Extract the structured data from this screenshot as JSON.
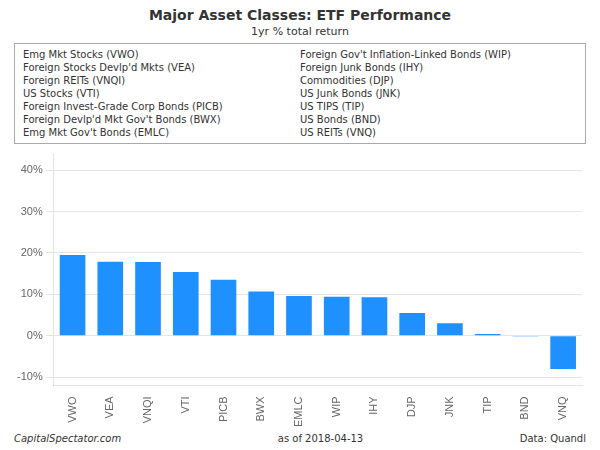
{
  "chart_data": {
    "type": "bar",
    "title": "Major Asset Classes: ETF Performance",
    "subtitle": "1yr % total return",
    "categories": [
      "VWO",
      "VEA",
      "VNQI",
      "VTI",
      "PICB",
      "BWX",
      "EMLC",
      "WIP",
      "IHY",
      "DJP",
      "JNK",
      "TIP",
      "BND",
      "VNQ"
    ],
    "values": [
      19.5,
      17.9,
      17.8,
      15.4,
      13.5,
      10.7,
      9.6,
      9.4,
      9.3,
      5.5,
      3.0,
      0.4,
      -0.2,
      -8.0
    ],
    "color": "#1e90ff",
    "ylim": [
      -12,
      44
    ],
    "yticks": [
      {
        "value": -10,
        "label": "-10%"
      },
      {
        "value": 0,
        "label": "0%"
      },
      {
        "value": 10,
        "label": "10%"
      },
      {
        "value": 20,
        "label": "20%"
      },
      {
        "value": 30,
        "label": "30%"
      },
      {
        "value": 40,
        "label": "40%"
      }
    ],
    "grid": true,
    "annotations": [
      "Emg Mkt Stocks (VWO)",
      "Foreign Stocks Devlp'd Mkts (VEA)",
      "Foreign REITs (VNQI)",
      "US Stocks (VTI)",
      "Foreign Invest-Grade Corp Bonds (PICB)",
      "Foreign Devlp'd Mkt Gov't Bonds (BWX)",
      "Emg Mkt Gov't Bonds (EMLC)",
      "Foreign Gov't Inflation-Linked Bonds (WIP)",
      "Foreign Junk Bonds (IHY)",
      "Commodities (DJP)",
      "US Junk Bonds (JNK)",
      "US TIPS (TIP)",
      "US Bonds (BND)",
      "US REITs (VNQ)",
      "CapitalSpectator.com",
      "as of  2018-04-13",
      "Data: Quandl"
    ]
  }
}
